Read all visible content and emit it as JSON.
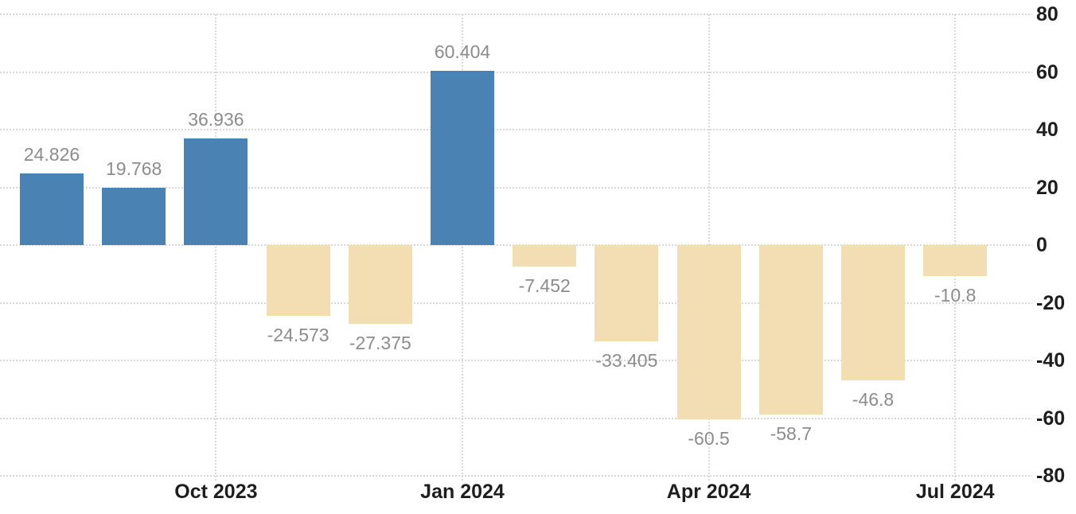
{
  "chart_data": {
    "type": "bar",
    "title": "",
    "xlabel": "",
    "ylabel": "",
    "values": [
      24.826,
      19.768,
      36.936,
      -24.573,
      -27.375,
      60.404,
      -7.452,
      -33.405,
      -60.5,
      -58.7,
      -46.8,
      -10.8
    ],
    "bar_value_labels": [
      "24.826",
      "19.768",
      "36.936",
      "-24.573",
      "-27.375",
      "60.404",
      "-7.452",
      "-33.405",
      "-60.5",
      "-58.7",
      "-46.8",
      "-10.8"
    ],
    "x_ticks": [
      {
        "bar_index": 2,
        "label": "Oct 2023"
      },
      {
        "bar_index": 5,
        "label": "Jan 2024"
      },
      {
        "bar_index": 8,
        "label": "Apr 2024"
      },
      {
        "bar_index": 11,
        "label": "Jul 2024"
      }
    ],
    "y_ticks": [
      80,
      60,
      40,
      20,
      0,
      -20,
      -40,
      -60,
      -80
    ],
    "y_tick_labels": [
      "80",
      "60",
      "40",
      "20",
      "0",
      "-20",
      "-40",
      "-60",
      "-80"
    ],
    "ylim": [
      -80,
      80
    ],
    "grid": true,
    "grid_style": "dotted",
    "legend": false,
    "y_axis_position": "right",
    "colors": {
      "positive_bar": "#4a82b4",
      "negative_bar": "#f3deb3",
      "value_label": "#8c8c8c",
      "axis_label": "#1e1e1e",
      "gridline": "#d9d9d9",
      "background": "#ffffff"
    }
  }
}
